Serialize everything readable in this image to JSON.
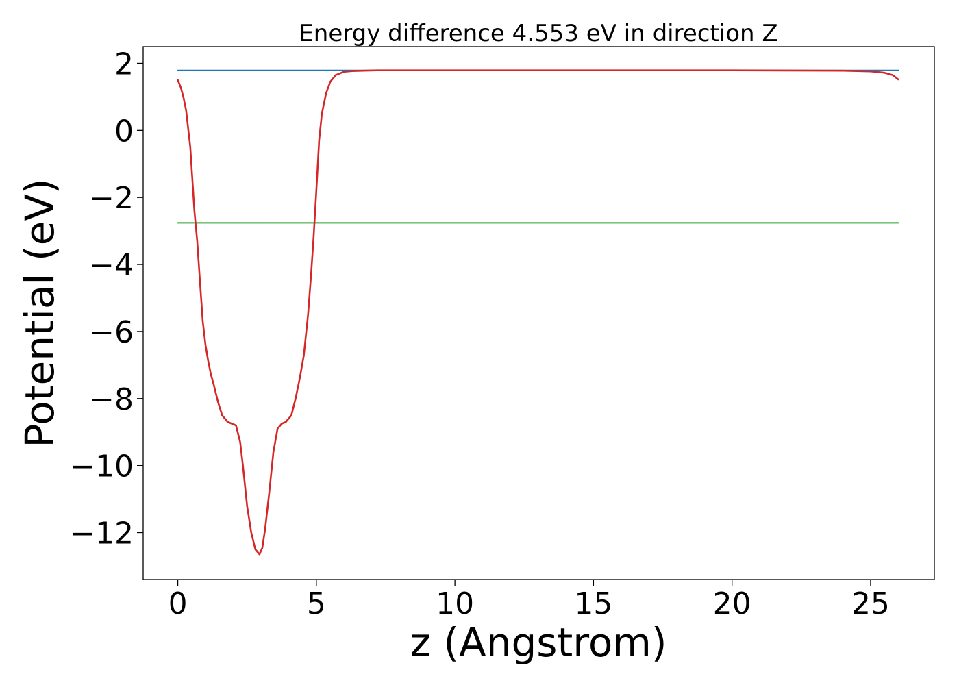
{
  "chart_data": {
    "type": "line",
    "title": "Energy difference 4.553 eV in direction Z",
    "xlabel": "z (Angstrom)",
    "ylabel": "Potential (eV)",
    "xlim": [
      -1.25,
      27.3
    ],
    "ylim": [
      -13.4,
      2.5
    ],
    "grid": false,
    "x_ticks": [
      0,
      5,
      10,
      15,
      20,
      25
    ],
    "x_tick_labels": [
      "0",
      "5",
      "10",
      "15",
      "20",
      "25"
    ],
    "y_ticks": [
      2,
      0,
      -2,
      -4,
      -6,
      -8,
      -10,
      -12
    ],
    "y_tick_labels": [
      "2",
      "0",
      "−2",
      "−4",
      "−6",
      "−8",
      "−10",
      "−12"
    ],
    "series": [
      {
        "color": "#1f77b4",
        "kind": "hline",
        "x": [
          0,
          26
        ],
        "y": [
          1.79,
          1.79
        ]
      },
      {
        "color": "#2ca02c",
        "kind": "hline",
        "x": [
          0,
          26
        ],
        "y": [
          -2.76,
          -2.76
        ]
      },
      {
        "color": "#d62728",
        "kind": "curve",
        "x": [
          0,
          0.1,
          0.2,
          0.3,
          0.45,
          0.6,
          0.7,
          0.8,
          0.9,
          1.0,
          1.1,
          1.2,
          1.3,
          1.45,
          1.6,
          1.8,
          1.95,
          2.1,
          2.25,
          2.35,
          2.5,
          2.65,
          2.8,
          2.95,
          3.05,
          3.15,
          3.3,
          3.45,
          3.6,
          3.75,
          3.9,
          4.1,
          4.25,
          4.4,
          4.55,
          4.7,
          4.8,
          4.9,
          5.0,
          5.1,
          5.2,
          5.35,
          5.5,
          5.7,
          6.0,
          6.3,
          6.7,
          7.2,
          8.0,
          10.0,
          15.0,
          20.0,
          24.0,
          25.0,
          25.5,
          25.8,
          26.0
        ],
        "y": [
          1.5,
          1.3,
          1.0,
          0.6,
          -0.5,
          -2.4,
          -3.3,
          -4.5,
          -5.7,
          -6.4,
          -6.9,
          -7.3,
          -7.6,
          -8.1,
          -8.5,
          -8.7,
          -8.75,
          -8.8,
          -9.3,
          -10.0,
          -11.2,
          -12.0,
          -12.5,
          -12.65,
          -12.45,
          -11.9,
          -10.8,
          -9.6,
          -8.9,
          -8.75,
          -8.7,
          -8.5,
          -8.0,
          -7.4,
          -6.7,
          -5.5,
          -4.4,
          -3.2,
          -1.8,
          -0.3,
          0.5,
          1.1,
          1.45,
          1.65,
          1.75,
          1.77,
          1.78,
          1.79,
          1.79,
          1.79,
          1.79,
          1.79,
          1.78,
          1.76,
          1.72,
          1.65,
          1.52
        ]
      }
    ]
  }
}
